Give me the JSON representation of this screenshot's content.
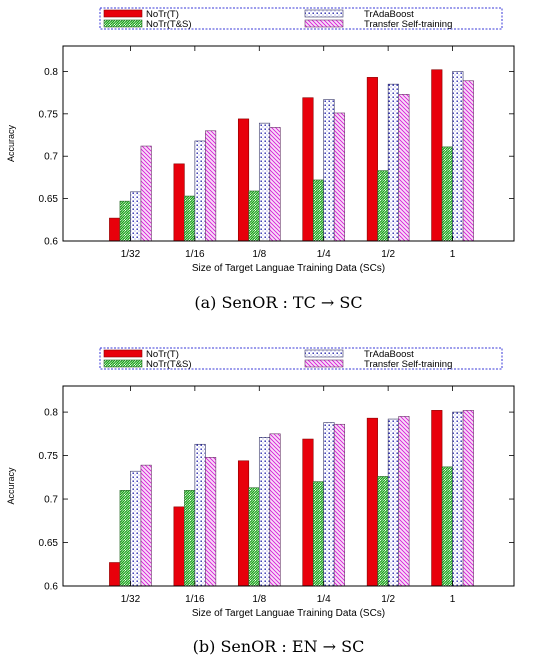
{
  "legend_labels": [
    "NoTr(T)",
    "NoTr(T&S)",
    "TrAdaBoost",
    "Transfer Self-training"
  ],
  "colors": {
    "notr_t": "#e8000b",
    "notr_ts": "#17a317",
    "tradaboost": "#1a1aa8",
    "transfer_self_training": "#d81bd8",
    "legend_border": "#3a3ad8"
  },
  "chart_data": [
    {
      "type": "bar",
      "caption": "(a)  SenOR : TC → SC",
      "xlabel": "Size of  Target Languae Training Data (SCs)",
      "ylabel": "Accuracy",
      "ylim": [
        0.6,
        0.83
      ],
      "yticks": [
        "0.6",
        "0.65",
        "0.7",
        "0.75",
        "0.8"
      ],
      "categories": [
        "1/32",
        "1/16",
        "1/8",
        "1/4",
        "1/2",
        "1"
      ],
      "legend_placement": "top",
      "series": [
        {
          "name": "NoTr(T)",
          "values": [
            0.627,
            0.691,
            0.744,
            0.769,
            0.793,
            0.802
          ]
        },
        {
          "name": "NoTr(T&S)",
          "values": [
            0.647,
            0.653,
            0.659,
            0.672,
            0.683,
            0.711
          ]
        },
        {
          "name": "TrAdaBoost",
          "values": [
            0.658,
            0.718,
            0.739,
            0.767,
            0.785,
            0.8
          ]
        },
        {
          "name": "Transfer Self-training",
          "values": [
            0.712,
            0.73,
            0.734,
            0.751,
            0.773,
            0.789
          ]
        }
      ]
    },
    {
      "type": "bar",
      "caption": "(b)  SenOR : EN → SC",
      "xlabel": "Size of  Target Languae Training Data (SCs)",
      "ylabel": "Accuracy",
      "ylim": [
        0.6,
        0.83
      ],
      "yticks": [
        "0.6",
        "0.65",
        "0.7",
        "0.75",
        "0.8"
      ],
      "categories": [
        "1/32",
        "1/16",
        "1/8",
        "1/4",
        "1/2",
        "1"
      ],
      "legend_placement": "top",
      "series": [
        {
          "name": "NoTr(T)",
          "values": [
            0.627,
            0.691,
            0.744,
            0.769,
            0.793,
            0.802
          ]
        },
        {
          "name": "NoTr(T&S)",
          "values": [
            0.71,
            0.71,
            0.713,
            0.72,
            0.726,
            0.737
          ]
        },
        {
          "name": "TrAdaBoost",
          "values": [
            0.732,
            0.763,
            0.771,
            0.788,
            0.792,
            0.8
          ]
        },
        {
          "name": "Transfer Self-training",
          "values": [
            0.739,
            0.748,
            0.775,
            0.786,
            0.795,
            0.802
          ]
        }
      ]
    }
  ]
}
